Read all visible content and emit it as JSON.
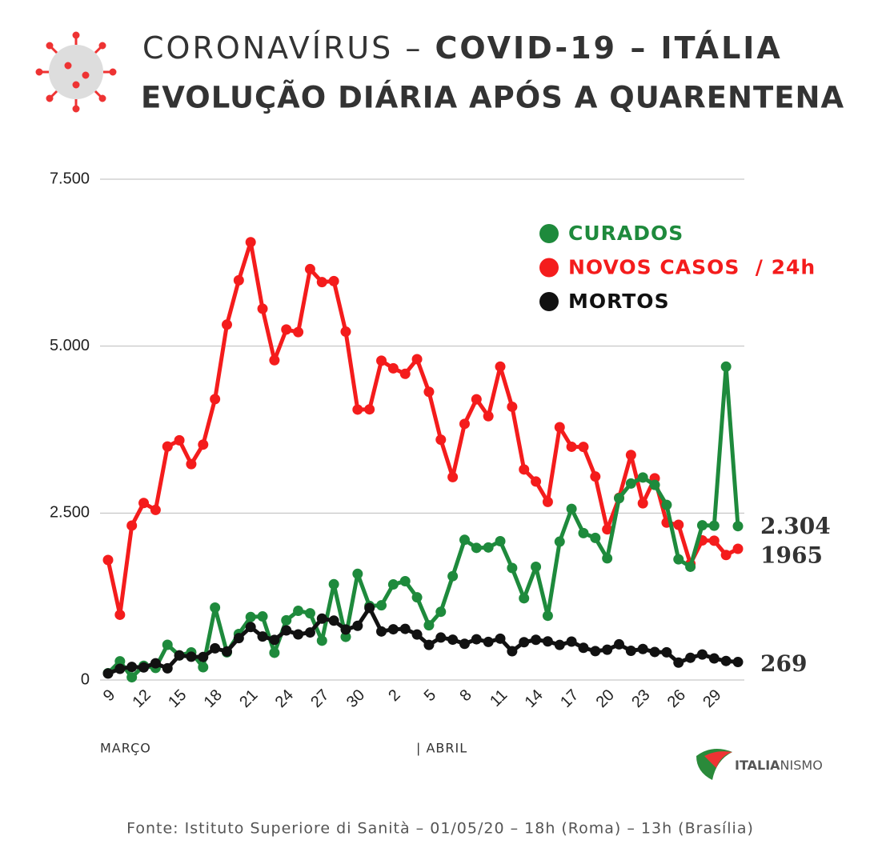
{
  "chart_data": {
    "type": "line",
    "title_light": "CORONAVÍRUS –",
    "title_bold": "COVID-19 – ITÁLIA",
    "subtitle": "EVOLUÇÃO DIÁRIA APÓS A QUARENTENA",
    "categories": [
      "9",
      null,
      null,
      "12",
      null,
      null,
      "15",
      null,
      null,
      "18",
      null,
      null,
      "21",
      null,
      null,
      "24",
      null,
      null,
      "27",
      null,
      null,
      "30",
      null,
      null,
      "2",
      null,
      null,
      "5",
      null,
      null,
      "8",
      null,
      null,
      "11",
      null,
      null,
      "14",
      null,
      null,
      "17",
      null,
      null,
      "20",
      null,
      null,
      "23",
      null,
      null,
      "26",
      null,
      null,
      "29",
      null,
      null
    ],
    "month_labels": [
      "MARÇO",
      "| ABRIL"
    ],
    "ylim": [
      0,
      7500
    ],
    "yticks": [
      0,
      {
        "value": 2500,
        "label": "2.500"
      },
      {
        "value": 5000,
        "label": "5.000"
      },
      {
        "value": 7500,
        "label": "7.500"
      }
    ],
    "grid": true,
    "series": [
      {
        "name": "CURADOS",
        "color": "#1e8a3c",
        "values": [
          102,
          280,
          41,
          213,
          181,
          527,
          369,
          414,
          192,
          1084,
          415,
          689,
          943,
          952,
          408,
          894,
          1036,
          999,
          589,
          1434,
          646,
          1590,
          1109,
          1118,
          1431,
          1480,
          1238,
          819,
          1022,
          1555,
          2099,
          1979,
          1985,
          2079,
          1677,
          1224,
          1695,
          962,
          2072,
          2563,
          2200,
          2128,
          1822,
          2723,
          2943,
          3033,
          2922,
          2622,
          1808,
          1696,
          2317,
          2311,
          4693,
          2304
        ],
        "value_labels": [
          null,
          null,
          null,
          null,
          null,
          null,
          null,
          null,
          null,
          null,
          null,
          null,
          null,
          null,
          null,
          null,
          null,
          null,
          null,
          null,
          null,
          null,
          null,
          null,
          null,
          null,
          null,
          null,
          null,
          null,
          null,
          null,
          null,
          null,
          null,
          null,
          null,
          null,
          null,
          null,
          null,
          null,
          null,
          null,
          null,
          null,
          null,
          null,
          null,
          null,
          null,
          null,
          null,
          "2.304"
        ]
      },
      {
        "name": "NOVOS CASOS  / 24h",
        "color": "#f41c1c",
        "values": [
          1797,
          977,
          2313,
          2651,
          2547,
          3497,
          3590,
          3233,
          3526,
          4207,
          5322,
          5986,
          6557,
          5560,
          4789,
          5249,
          5210,
          6153,
          5959,
          5974,
          5217,
          4050,
          4053,
          4782,
          4668,
          4585,
          4805,
          4316,
          3599,
          3039,
          3836,
          4204,
          3951,
          4694,
          4092,
          3153,
          2972,
          2667,
          3786,
          3493,
          3491,
          3047,
          2256,
          2729,
          3370,
          2646,
          3021,
          2357,
          2324,
          1739,
          2091,
          2086,
          1872,
          1965
        ],
        "value_labels": [
          null,
          null,
          null,
          null,
          null,
          null,
          null,
          null,
          null,
          null,
          null,
          null,
          null,
          null,
          null,
          null,
          null,
          null,
          null,
          null,
          null,
          null,
          null,
          null,
          null,
          null,
          null,
          null,
          null,
          null,
          null,
          null,
          null,
          null,
          null,
          null,
          null,
          null,
          null,
          null,
          null,
          null,
          null,
          null,
          null,
          null,
          null,
          null,
          null,
          null,
          null,
          null,
          null,
          "1965"
        ]
      },
      {
        "name": "MORTOS",
        "color": "#111111",
        "values": [
          97,
          168,
          196,
          189,
          250,
          175,
          368,
          349,
          345,
          475,
          427,
          627,
          793,
          651,
          601,
          743,
          683,
          712,
          919,
          889,
          756,
          812,
          1080,
          727,
          760,
          766,
          681,
          525,
          636,
          604,
          542,
          610,
          570,
          619,
          431,
          566,
          602,
          578,
          525,
          575,
          482,
          433,
          454,
          534,
          437,
          464,
          420,
          415,
          260,
          333,
          382,
          323,
          285,
          269
        ],
        "value_labels": [
          null,
          null,
          null,
          null,
          null,
          null,
          null,
          null,
          null,
          null,
          null,
          null,
          null,
          null,
          null,
          null,
          null,
          null,
          null,
          null,
          null,
          null,
          null,
          null,
          null,
          null,
          null,
          null,
          null,
          null,
          null,
          null,
          null,
          null,
          null,
          null,
          null,
          null,
          null,
          null,
          null,
          null,
          null,
          null,
          null,
          null,
          null,
          null,
          null,
          null,
          null,
          null,
          null,
          "269"
        ]
      }
    ],
    "legend_position": "upper right",
    "logo_bold": "ITALIA",
    "logo_light": "NISMO",
    "source": "Fonte: Istituto Superiore di Sanità – 01/05/20 – 18h (Roma) – 13h (Brasília)"
  }
}
